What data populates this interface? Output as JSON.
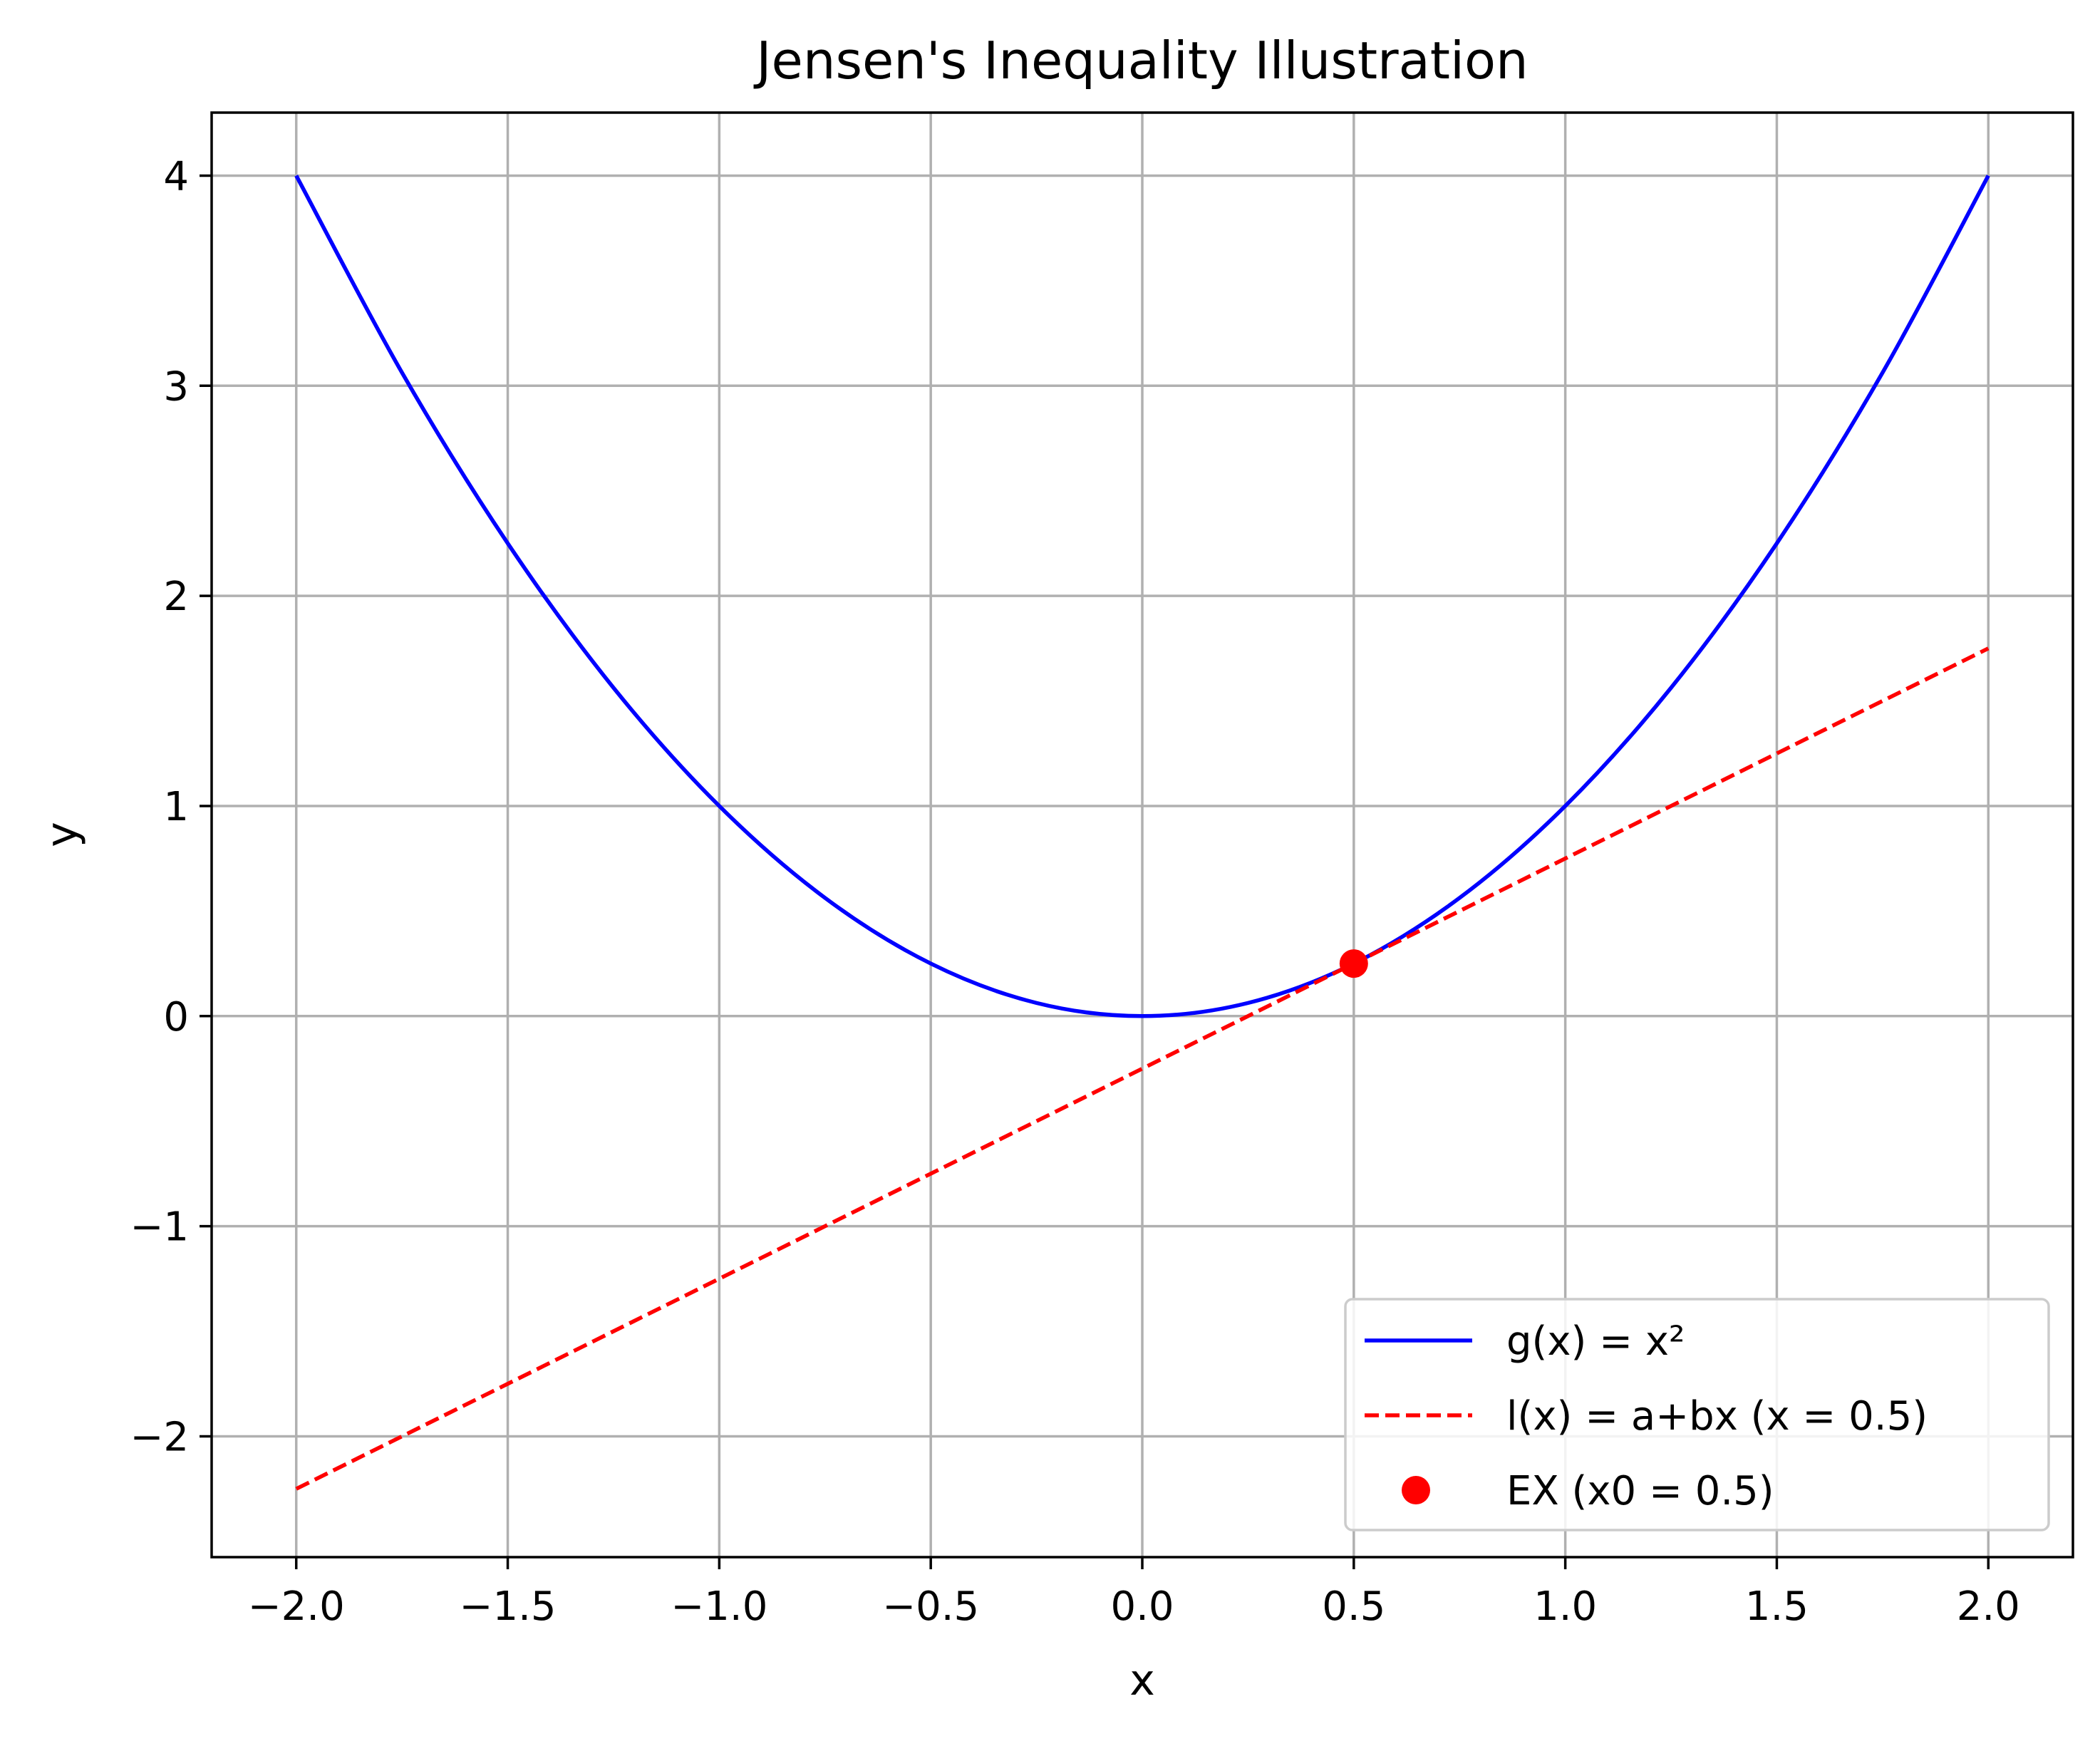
{
  "chart_data": {
    "type": "line",
    "title": "Jensen's Inequality Illustration",
    "xlabel": "x",
    "ylabel": "y",
    "xlim": [
      -2.2,
      2.2
    ],
    "ylim": [
      -2.575,
      4.3
    ],
    "x_ticks": [
      -2.0,
      -1.5,
      -1.0,
      -0.5,
      0.0,
      0.5,
      1.0,
      1.5,
      2.0
    ],
    "x_tick_labels": [
      "−2.0",
      "−1.5",
      "−1.0",
      "−0.5",
      "0.0",
      "0.5",
      "1.0",
      "1.5",
      "2.0"
    ],
    "y_ticks": [
      -2,
      -1,
      0,
      1,
      2,
      3,
      4
    ],
    "y_tick_labels": [
      "−2",
      "−1",
      "0",
      "1",
      "2",
      "3",
      "4"
    ],
    "grid": true,
    "legend_position": "lower-right",
    "series": [
      {
        "name": "g(x) = x²",
        "kind": "line",
        "style": "solid",
        "color": "#0000ff",
        "x": [
          -2.0,
          -1.75,
          -1.5,
          -1.25,
          -1.0,
          -0.75,
          -0.5,
          -0.25,
          0.0,
          0.25,
          0.5,
          0.75,
          1.0,
          1.25,
          1.5,
          1.75,
          2.0
        ],
        "y": [
          4.0,
          3.0625,
          2.25,
          1.5625,
          1.0,
          0.5625,
          0.25,
          0.0625,
          0.0,
          0.0625,
          0.25,
          0.5625,
          1.0,
          1.5625,
          2.25,
          3.0625,
          4.0
        ]
      },
      {
        "name": "l(x) = a+bx (x = 0.5)",
        "kind": "line",
        "style": "dashed",
        "color": "#ff0000",
        "x": [
          -2.0,
          2.0
        ],
        "y": [
          -2.25,
          1.75
        ]
      },
      {
        "name": "EX (x0 = 0.5)",
        "kind": "scatter",
        "color": "#ff0000",
        "x": [
          0.5
        ],
        "y": [
          0.25
        ]
      }
    ]
  }
}
